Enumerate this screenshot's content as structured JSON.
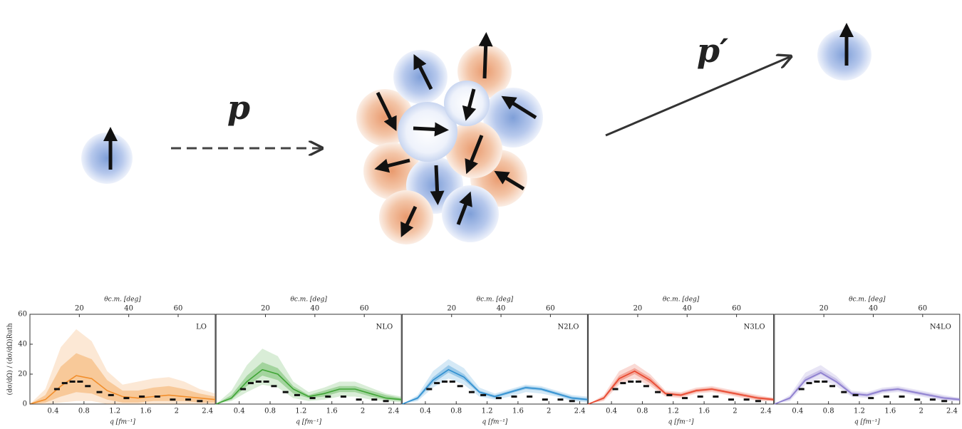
{
  "diagram": {
    "incoming_label": "p",
    "outgoing_label": "p′"
  },
  "chart_data": [
    {
      "type": "line",
      "title": "LO",
      "color": "#f28e2b",
      "xlabel": "q [fm⁻¹]",
      "x2label": "θc.m. [deg]",
      "ylabel": "(dσ/dΩ) / (dσ/dΩ)Ruth",
      "xlim": [
        0.1,
        2.5
      ],
      "xticks": [
        0.4,
        0.8,
        1.2,
        1.6,
        2.0,
        2.4
      ],
      "x2lim": [
        0,
        75
      ],
      "x2ticks": [
        20,
        40,
        60
      ],
      "ylim": [
        0,
        60
      ],
      "yticks": [
        0,
        20,
        40,
        60
      ],
      "x": [
        0.1,
        0.3,
        0.5,
        0.7,
        0.9,
        1.1,
        1.3,
        1.5,
        1.7,
        1.9,
        2.1,
        2.3,
        2.5
      ],
      "values": [
        0,
        3,
        12,
        19,
        17,
        9,
        5,
        4,
        5,
        6,
        5,
        4,
        3
      ],
      "inner_low": [
        0,
        1,
        5,
        8,
        7,
        3,
        1,
        1,
        2,
        2,
        2,
        1,
        1
      ],
      "inner_high": [
        0,
        6,
        25,
        34,
        30,
        16,
        9,
        9,
        11,
        12,
        10,
        7,
        5
      ],
      "outer_low": [
        0,
        0,
        1,
        2,
        2,
        0,
        0,
        0,
        0,
        0,
        0,
        0,
        0
      ],
      "outer_high": [
        0,
        10,
        38,
        50,
        42,
        22,
        13,
        15,
        17,
        18,
        15,
        10,
        7
      ],
      "experiment": {
        "x": [
          0.45,
          0.55,
          0.65,
          0.75,
          0.85,
          1.0,
          1.15,
          1.35,
          1.55,
          1.75,
          1.95,
          2.15,
          2.3
        ],
        "values": [
          10,
          14,
          15,
          15,
          12,
          8,
          6,
          4,
          5,
          5,
          3,
          3,
          2
        ]
      }
    },
    {
      "type": "line",
      "title": "NLO",
      "color": "#3fa535",
      "xlabel": "q [fm⁻¹]",
      "x2label": "θc.m. [deg]",
      "xlim": [
        0.1,
        2.5
      ],
      "xticks": [
        0.4,
        0.8,
        1.2,
        1.6,
        2.0,
        2.4
      ],
      "x2lim": [
        0,
        75
      ],
      "x2ticks": [
        20,
        40,
        60
      ],
      "ylim": [
        0,
        60
      ],
      "x": [
        0.1,
        0.3,
        0.5,
        0.7,
        0.9,
        1.1,
        1.3,
        1.5,
        1.7,
        1.9,
        2.1,
        2.3,
        2.5
      ],
      "values": [
        0,
        4,
        15,
        23,
        20,
        10,
        5,
        7,
        10,
        10,
        7,
        4,
        3
      ],
      "inner_low": [
        0,
        3,
        12,
        19,
        16,
        7,
        4,
        5,
        8,
        8,
        5,
        3,
        2
      ],
      "inner_high": [
        0,
        6,
        19,
        28,
        24,
        12,
        6,
        9,
        12,
        12,
        9,
        6,
        4
      ],
      "outer_low": [
        0,
        2,
        8,
        13,
        11,
        4,
        2,
        3,
        5,
        5,
        3,
        2,
        1
      ],
      "outer_high": [
        0,
        9,
        26,
        37,
        32,
        15,
        8,
        11,
        15,
        15,
        11,
        7,
        5
      ],
      "experiment": {
        "x": [
          0.45,
          0.55,
          0.65,
          0.75,
          0.85,
          1.0,
          1.15,
          1.35,
          1.55,
          1.75,
          1.95,
          2.15,
          2.3
        ],
        "values": [
          10,
          14,
          15,
          15,
          12,
          8,
          6,
          4,
          5,
          5,
          3,
          3,
          2
        ]
      }
    },
    {
      "type": "line",
      "title": "N2LO",
      "color": "#2e8fd0",
      "xlabel": "q [fm⁻¹]",
      "x2label": "θc.m. [deg]",
      "xlim": [
        0.1,
        2.5
      ],
      "xticks": [
        0.4,
        0.8,
        1.2,
        1.6,
        2.0,
        2.4
      ],
      "x2lim": [
        0,
        75
      ],
      "x2ticks": [
        20,
        40,
        60
      ],
      "ylim": [
        0,
        60
      ],
      "x": [
        0.1,
        0.3,
        0.5,
        0.7,
        0.9,
        1.1,
        1.3,
        1.5,
        1.7,
        1.9,
        2.1,
        2.3,
        2.5
      ],
      "values": [
        0,
        4,
        16,
        23,
        18,
        8,
        5,
        8,
        11,
        10,
        7,
        4,
        3
      ],
      "inner_low": [
        0,
        3,
        14,
        21,
        16,
        7,
        4,
        7,
        10,
        9,
        6,
        3,
        2
      ],
      "inner_high": [
        0,
        5,
        18,
        26,
        20,
        9,
        6,
        9,
        12,
        11,
        8,
        5,
        4
      ],
      "outer_low": [
        0,
        2,
        11,
        17,
        13,
        5,
        3,
        5,
        8,
        7,
        5,
        2,
        1
      ],
      "outer_high": [
        0,
        6,
        22,
        30,
        24,
        11,
        7,
        10,
        13,
        12,
        9,
        6,
        5
      ],
      "experiment": {
        "x": [
          0.45,
          0.55,
          0.65,
          0.75,
          0.85,
          1.0,
          1.15,
          1.35,
          1.55,
          1.75,
          1.95,
          2.15,
          2.3
        ],
        "values": [
          10,
          14,
          15,
          15,
          12,
          8,
          6,
          4,
          5,
          5,
          3,
          3,
          2
        ]
      }
    },
    {
      "type": "line",
      "title": "N3LO",
      "color": "#e8452c",
      "xlabel": "q [fm⁻¹]",
      "x2label": "θc.m. [deg]",
      "xlim": [
        0.1,
        2.5
      ],
      "xticks": [
        0.4,
        0.8,
        1.2,
        1.6,
        2.0,
        2.4
      ],
      "x2lim": [
        0,
        75
      ],
      "x2ticks": [
        20,
        40,
        60
      ],
      "ylim": [
        0,
        60
      ],
      "x": [
        0.1,
        0.3,
        0.5,
        0.7,
        0.9,
        1.1,
        1.3,
        1.5,
        1.7,
        1.9,
        2.1,
        2.3,
        2.5
      ],
      "values": [
        0,
        4,
        17,
        22,
        16,
        7,
        6,
        9,
        10,
        8,
        6,
        4,
        3
      ],
      "inner_low": [
        0,
        3,
        15,
        20,
        14,
        6,
        5,
        8,
        9,
        7,
        5,
        3,
        2
      ],
      "inner_high": [
        0,
        5,
        19,
        24,
        18,
        8,
        7,
        10,
        11,
        9,
        7,
        5,
        4
      ],
      "outer_low": [
        0,
        2,
        13,
        17,
        12,
        5,
        4,
        7,
        8,
        6,
        4,
        2,
        2
      ],
      "outer_high": [
        0,
        6,
        22,
        27,
        20,
        9,
        8,
        11,
        12,
        10,
        8,
        6,
        4
      ],
      "experiment": {
        "x": [
          0.45,
          0.55,
          0.65,
          0.75,
          0.85,
          1.0,
          1.15,
          1.35,
          1.55,
          1.75,
          1.95,
          2.15,
          2.3
        ],
        "values": [
          10,
          14,
          15,
          15,
          12,
          8,
          6,
          4,
          5,
          5,
          3,
          3,
          2
        ]
      }
    },
    {
      "type": "line",
      "title": "N4LO",
      "color": "#8b7ccf",
      "xlabel": "q [fm⁻¹]",
      "x2label": "θc.m. [deg]",
      "xlim": [
        0.1,
        2.5
      ],
      "xticks": [
        0.4,
        0.8,
        1.2,
        1.6,
        2.0,
        2.4
      ],
      "x2lim": [
        0,
        75
      ],
      "x2ticks": [
        20,
        40,
        60
      ],
      "ylim": [
        0,
        60
      ],
      "x": [
        0.1,
        0.3,
        0.5,
        0.7,
        0.9,
        1.1,
        1.3,
        1.5,
        1.7,
        1.9,
        2.1,
        2.3,
        2.5
      ],
      "values": [
        0,
        4,
        16,
        21,
        15,
        7,
        6,
        9,
        10,
        8,
        6,
        4,
        3
      ],
      "inner_low": [
        0,
        3,
        15,
        20,
        14,
        6,
        5,
        8,
        9,
        7,
        5,
        3,
        2
      ],
      "inner_high": [
        0,
        5,
        18,
        23,
        17,
        8,
        7,
        10,
        11,
        9,
        7,
        5,
        4
      ],
      "outer_low": [
        0,
        2,
        13,
        17,
        12,
        5,
        4,
        7,
        8,
        6,
        4,
        2,
        2
      ],
      "outer_high": [
        0,
        6,
        21,
        26,
        19,
        9,
        8,
        11,
        12,
        10,
        8,
        6,
        4
      ],
      "experiment": {
        "x": [
          0.45,
          0.55,
          0.65,
          0.75,
          0.85,
          1.0,
          1.15,
          1.35,
          1.55,
          1.75,
          1.95,
          2.15,
          2.3
        ],
        "values": [
          10,
          14,
          15,
          15,
          12,
          8,
          6,
          4,
          5,
          5,
          3,
          3,
          2
        ]
      }
    }
  ]
}
